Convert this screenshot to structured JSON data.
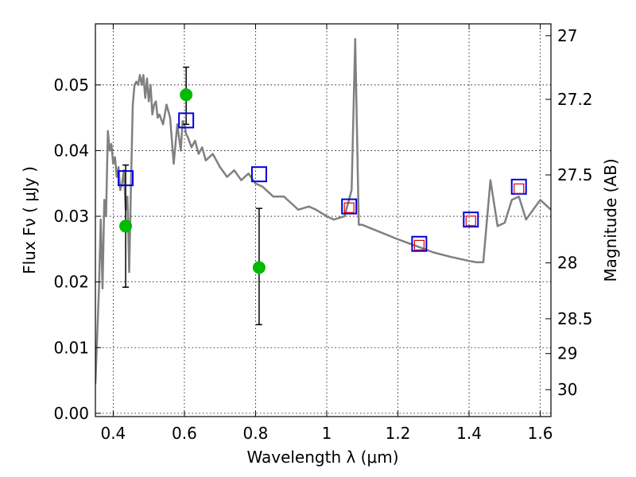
{
  "chart_data": {
    "type": "scatter",
    "xlabel": "Wavelength  λ (μm)",
    "ylabel": "Flux  Fν  ( μJy )",
    "y2label": "Magnitude (AB)",
    "xlim": [
      0.35,
      1.63
    ],
    "ylim": [
      -0.0005,
      0.0593
    ],
    "grid": true,
    "x_ticks": [
      {
        "value": 0.4,
        "label": "0.4"
      },
      {
        "value": 0.6,
        "label": "0.6"
      },
      {
        "value": 0.8,
        "label": "0.8"
      },
      {
        "value": 1.0,
        "label": "1"
      },
      {
        "value": 1.2,
        "label": "1.2"
      },
      {
        "value": 1.4,
        "label": "1.4"
      },
      {
        "value": 1.6,
        "label": "1.6"
      }
    ],
    "y_ticks": [
      {
        "value": 0.0,
        "label": "0.00"
      },
      {
        "value": 0.01,
        "label": "0.01"
      },
      {
        "value": 0.02,
        "label": "0.02"
      },
      {
        "value": 0.03,
        "label": "0.03"
      },
      {
        "value": 0.04,
        "label": "0.04"
      },
      {
        "value": 0.05,
        "label": "0.05"
      }
    ],
    "y2_ticks": [
      {
        "flux": 0.0575,
        "label": "27"
      },
      {
        "flux": 0.0478,
        "label": "27.2"
      },
      {
        "flux": 0.0363,
        "label": "27.5"
      },
      {
        "flux": 0.0229,
        "label": "28"
      },
      {
        "flux": 0.0144,
        "label": "28.5"
      },
      {
        "flux": 0.0091,
        "label": "29"
      },
      {
        "flux": 0.0036,
        "label": "30"
      }
    ],
    "series": [
      {
        "kind": "line",
        "color": "#808080",
        "x": [
          0.35,
          0.36,
          0.365,
          0.37,
          0.375,
          0.38,
          0.385,
          0.39,
          0.395,
          0.4,
          0.405,
          0.41,
          0.415,
          0.42,
          0.425,
          0.43,
          0.435,
          0.44,
          0.445,
          0.45,
          0.455,
          0.46,
          0.465,
          0.47,
          0.475,
          0.48,
          0.485,
          0.49,
          0.495,
          0.5,
          0.505,
          0.51,
          0.515,
          0.52,
          0.525,
          0.53,
          0.54,
          0.55,
          0.56,
          0.57,
          0.58,
          0.59,
          0.595,
          0.6,
          0.605,
          0.61,
          0.62,
          0.63,
          0.64,
          0.65,
          0.66,
          0.68,
          0.7,
          0.72,
          0.74,
          0.76,
          0.78,
          0.8,
          0.82,
          0.85,
          0.88,
          0.9,
          0.92,
          0.95,
          0.97,
          1.0,
          1.02,
          1.05,
          1.07,
          1.08,
          1.09,
          1.1,
          1.2,
          1.25,
          1.3,
          1.35,
          1.4,
          1.42,
          1.44,
          1.46,
          1.48,
          1.5,
          1.52,
          1.54,
          1.56,
          1.6,
          1.63
        ],
        "y": [
          0.0045,
          0.019,
          0.0295,
          0.019,
          0.0325,
          0.03,
          0.043,
          0.04,
          0.041,
          0.038,
          0.039,
          0.036,
          0.0375,
          0.034,
          0.035,
          0.037,
          0.031,
          0.033,
          0.0215,
          0.035,
          0.047,
          0.05,
          0.0505,
          0.05,
          0.0515,
          0.05,
          0.0515,
          0.048,
          0.051,
          0.0475,
          0.05,
          0.0455,
          0.047,
          0.0475,
          0.045,
          0.0455,
          0.044,
          0.047,
          0.045,
          0.038,
          0.044,
          0.04,
          0.0445,
          0.044,
          0.0425,
          0.042,
          0.0405,
          0.0415,
          0.0395,
          0.0405,
          0.0385,
          0.0395,
          0.0375,
          0.036,
          0.037,
          0.0355,
          0.0365,
          0.035,
          0.0345,
          0.033,
          0.033,
          0.032,
          0.031,
          0.0315,
          0.031,
          0.03,
          0.0295,
          0.03,
          0.034,
          0.057,
          0.0287,
          0.0287,
          0.0265,
          0.0255,
          0.0245,
          0.0238,
          0.0232,
          0.023,
          0.023,
          0.0355,
          0.0285,
          0.029,
          0.0325,
          0.033,
          0.0295,
          0.0325,
          0.031
        ]
      },
      {
        "kind": "points_with_errors",
        "marker": "circle",
        "color": "#00bb00",
        "x": [
          0.435,
          0.605,
          0.81
        ],
        "y": [
          0.0285,
          0.0485,
          0.0222
        ],
        "yerr_low": [
          0.0192,
          0.044,
          0.0135
        ],
        "yerr_high": [
          0.0378,
          0.0527,
          0.0312
        ]
      },
      {
        "kind": "points",
        "marker": "open_square",
        "color": "#0000dd",
        "x": [
          0.435,
          0.605,
          0.81,
          1.063,
          1.26,
          1.405,
          1.54
        ],
        "y": [
          0.0358,
          0.0446,
          0.0364,
          0.0315,
          0.0258,
          0.0295,
          0.0345
        ]
      },
      {
        "kind": "points",
        "marker": "open_square_small",
        "color": "#dd0000",
        "x": [
          1.063,
          1.26,
          1.405,
          1.54
        ],
        "y": [
          0.0313,
          0.0256,
          0.0293,
          0.0342
        ]
      }
    ]
  }
}
